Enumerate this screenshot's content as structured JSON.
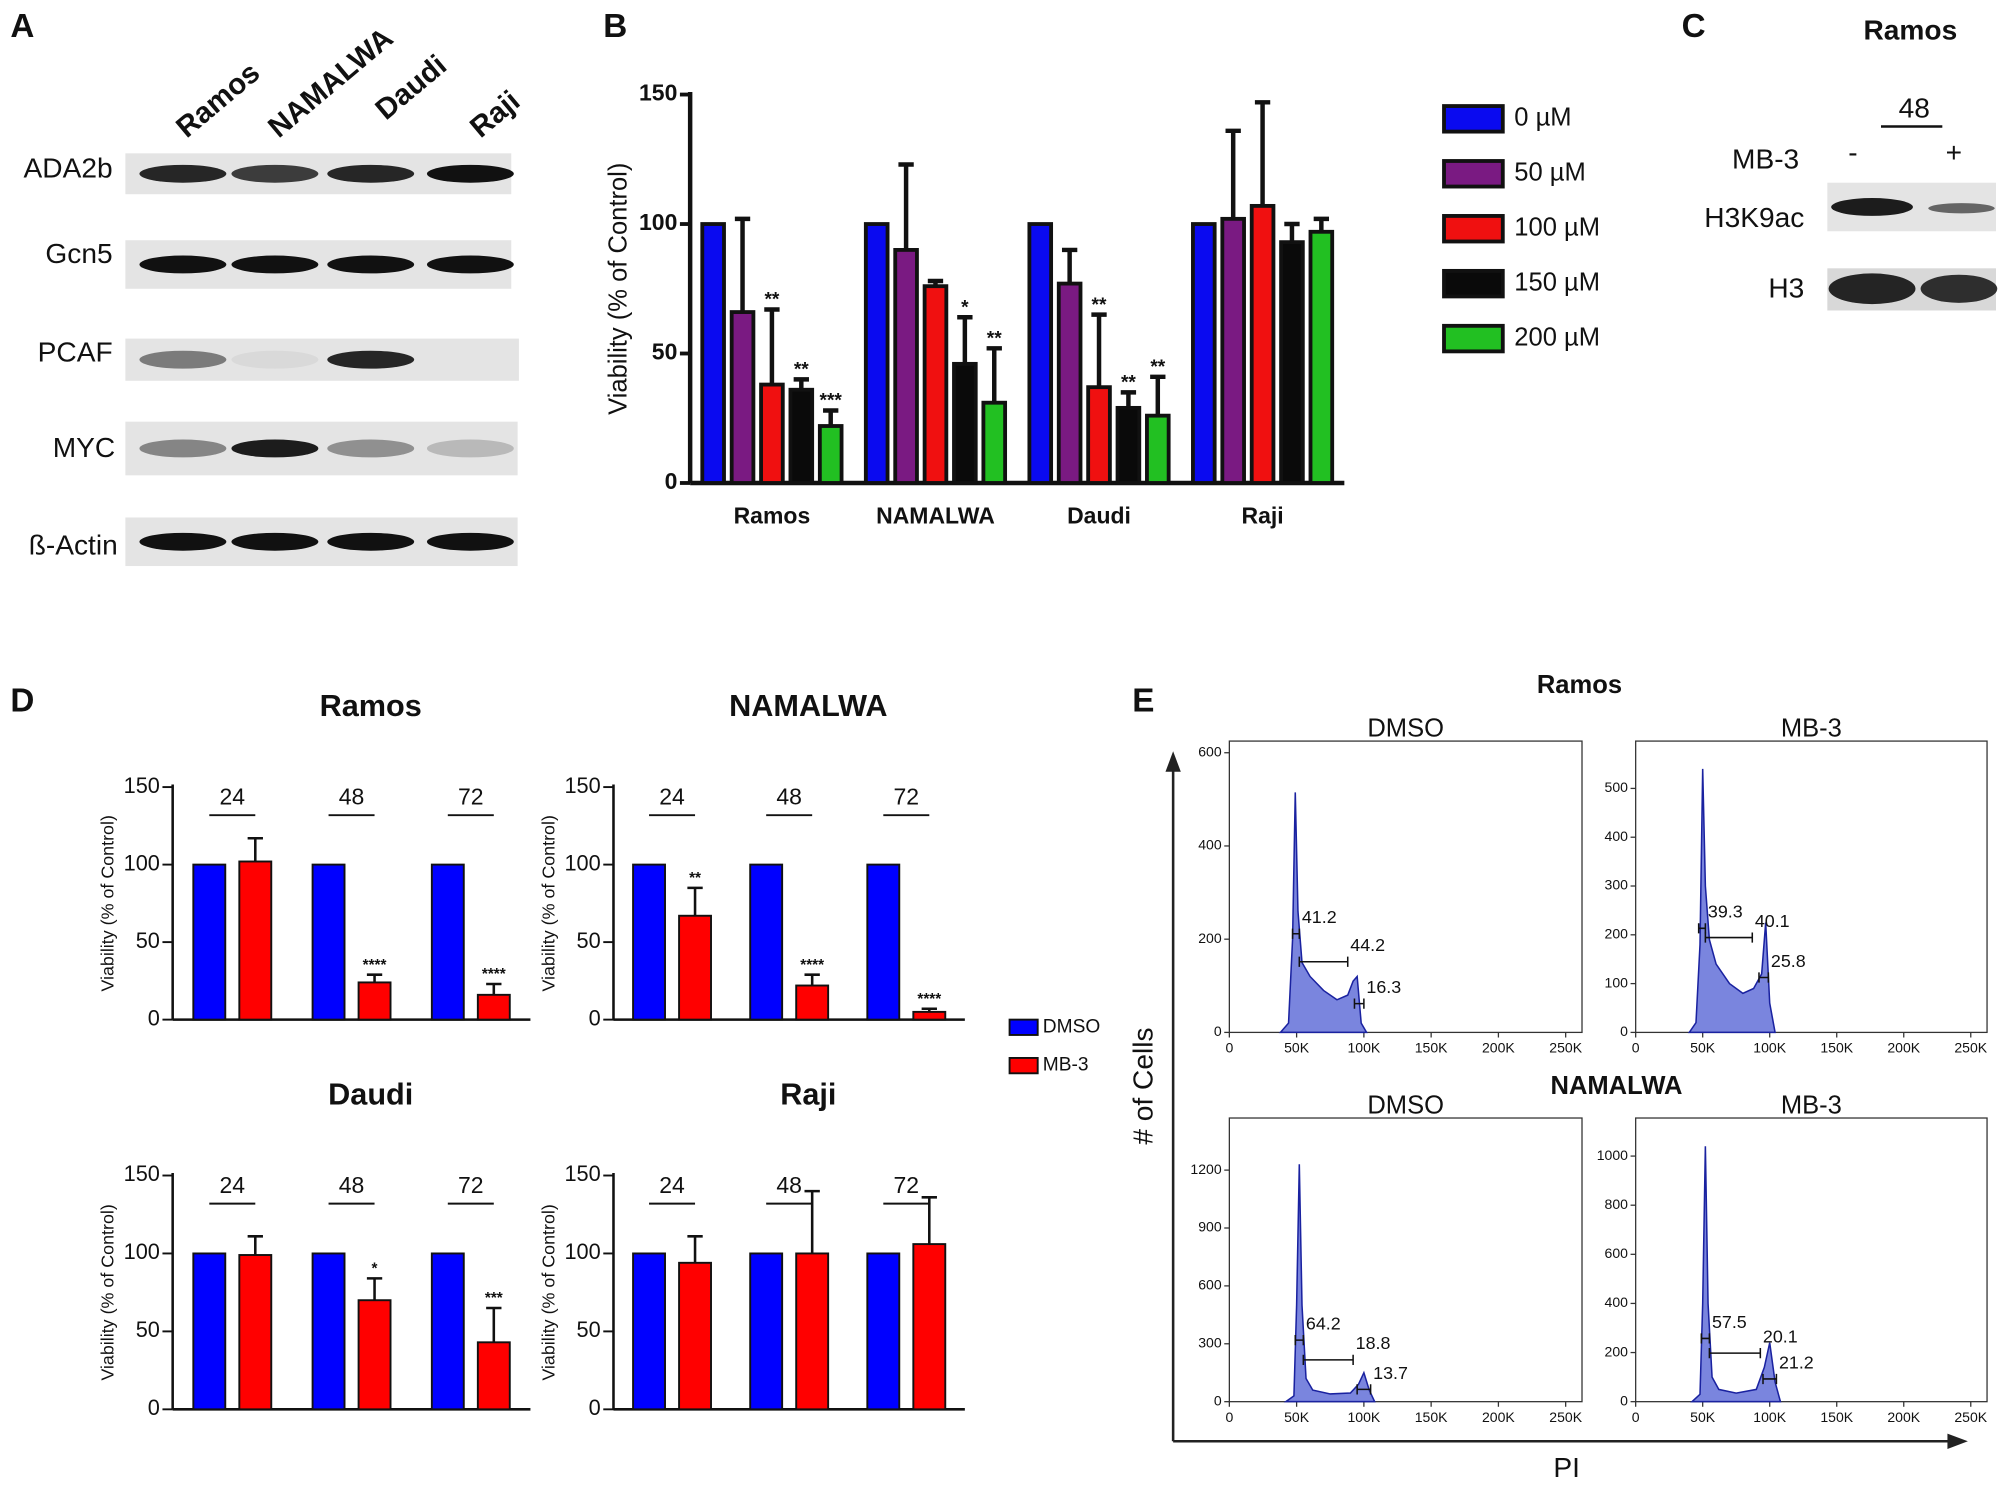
{
  "panel_letters": [
    "A",
    "B",
    "C",
    "D",
    "E"
  ],
  "blots_a": {
    "lanes": [
      "Ramos",
      "NAMALWA",
      "Daudi",
      "Raji"
    ],
    "rows": [
      "ADA2b",
      "Gcn5",
      "PCAF",
      "MYC",
      "ß-Actin"
    ]
  },
  "blot_c": {
    "title": "Ramos",
    "time": "48",
    "treatment": "MB-3",
    "conditions": [
      "-",
      "+"
    ],
    "rows": [
      "H3K9ac",
      "H3"
    ]
  },
  "panel_e": {
    "groups": [
      "Ramos",
      "NAMALWA"
    ],
    "ylabel": "# of Cells",
    "xlabel": "PI"
  },
  "chart_data": [
    {
      "type": "bar",
      "ylabel": "Viability (% of Control)",
      "categories": [
        "Ramos",
        "NAMALWA",
        "Daudi",
        "Raji"
      ],
      "ylim": [
        0,
        150
      ],
      "yticks": [
        0,
        50,
        100,
        150
      ],
      "legend": "right",
      "series": [
        {
          "name": "0 µM",
          "color": "#0a0af0",
          "values": [
            100,
            100,
            100,
            100
          ]
        },
        {
          "name": "50 µM",
          "color": "#7a1a82",
          "values": [
            66,
            90,
            77,
            102
          ],
          "errors": [
            36,
            33,
            13,
            34
          ]
        },
        {
          "name": "100 µM",
          "color": "#f01010",
          "values": [
            38,
            76,
            37,
            107
          ],
          "errors": [
            29,
            2,
            28,
            40
          ],
          "significance": [
            "**",
            null,
            "**",
            null
          ]
        },
        {
          "name": "150 µM",
          "color": "#0a0a0a",
          "values": [
            36,
            46,
            29,
            93
          ],
          "errors": [
            4,
            18,
            6,
            7
          ],
          "significance": [
            "**",
            "*",
            "**",
            null
          ]
        },
        {
          "name": "200 µM",
          "color": "#22c022",
          "values": [
            22,
            31,
            26,
            97
          ],
          "errors": [
            6,
            21,
            15,
            5
          ],
          "significance": [
            "***",
            "**",
            "**",
            null
          ]
        }
      ]
    },
    {
      "type": "bar",
      "title": "Ramos",
      "ylabel": "Viability (% of Control)",
      "categories": [
        "24",
        "48",
        "72"
      ],
      "ylim": [
        0,
        150
      ],
      "yticks": [
        0,
        50,
        100,
        150
      ],
      "series": [
        {
          "name": "DMSO",
          "color": "#0000ff",
          "values": [
            100,
            100,
            100
          ]
        },
        {
          "name": "MB-3",
          "color": "#ff0000",
          "values": [
            102,
            24,
            16
          ],
          "errors": [
            15,
            5,
            7
          ],
          "significance": [
            null,
            "****",
            "****"
          ]
        }
      ]
    },
    {
      "type": "bar",
      "title": "NAMALWA",
      "ylabel": "Viability (% of Control)",
      "categories": [
        "24",
        "48",
        "72"
      ],
      "ylim": [
        0,
        150
      ],
      "yticks": [
        0,
        50,
        100,
        150
      ],
      "legend": "right",
      "series": [
        {
          "name": "DMSO",
          "color": "#0000ff",
          "values": [
            100,
            100,
            100
          ]
        },
        {
          "name": "MB-3",
          "color": "#ff0000",
          "values": [
            67,
            22,
            5
          ],
          "errors": [
            18,
            7,
            2
          ],
          "significance": [
            "**",
            "****",
            "****"
          ]
        }
      ]
    },
    {
      "type": "bar",
      "title": "Daudi",
      "ylabel": "Viability (% of Control)",
      "categories": [
        "24",
        "48",
        "72"
      ],
      "ylim": [
        0,
        150
      ],
      "yticks": [
        0,
        50,
        100,
        150
      ],
      "series": [
        {
          "name": "DMSO",
          "color": "#0000ff",
          "values": [
            100,
            100,
            100
          ]
        },
        {
          "name": "MB-3",
          "color": "#ff0000",
          "values": [
            99,
            70,
            43
          ],
          "errors": [
            12,
            14,
            22
          ],
          "significance": [
            null,
            "*",
            "***"
          ]
        }
      ]
    },
    {
      "type": "bar",
      "title": "Raji",
      "ylabel": "Viability (% of Control)",
      "categories": [
        "24",
        "48",
        "72"
      ],
      "ylim": [
        0,
        150
      ],
      "yticks": [
        0,
        50,
        100,
        150
      ],
      "series": [
        {
          "name": "DMSO",
          "color": "#0000ff",
          "values": [
            100,
            100,
            100
          ]
        },
        {
          "name": "MB-3",
          "color": "#ff0000",
          "values": [
            94,
            100,
            106
          ],
          "errors": [
            17,
            40,
            30
          ]
        }
      ]
    },
    {
      "type": "area",
      "subtitle": "DMSO",
      "color": "#3344cc",
      "x": [
        38000,
        44000,
        47000,
        49000,
        51000,
        54000,
        60000,
        70000,
        80000,
        88000,
        92000,
        95000,
        98000,
        102000
      ],
      "values": [
        0,
        20,
        200,
        515,
        260,
        150,
        120,
        90,
        70,
        80,
        110,
        120,
        20,
        0
      ],
      "xlim": [
        0,
        262144
      ],
      "xticks": [
        0,
        {
          "value": 50000,
          "label": "50K"
        },
        {
          "value": 100000,
          "label": "100K"
        },
        {
          "value": 150000,
          "label": "150K"
        },
        {
          "value": 200000,
          "label": "200K"
        },
        {
          "value": 250000,
          "label": "250K"
        }
      ],
      "ylim": [
        0,
        625
      ],
      "yticks": [
        0,
        200,
        400,
        600
      ],
      "gates": [
        {
          "value": 41.2,
          "x": [
            47000,
            52000
          ]
        },
        {
          "value": 44.2,
          "x": [
            52000,
            88000
          ]
        },
        {
          "value": 16.3,
          "x": [
            93000,
            100000
          ]
        }
      ]
    },
    {
      "type": "area",
      "subtitle": "MB-3",
      "color": "#3344cc",
      "x": [
        40000,
        45000,
        48000,
        50000,
        52000,
        55000,
        60000,
        70000,
        80000,
        88000,
        94000,
        97000,
        100000,
        104000
      ],
      "values": [
        0,
        20,
        180,
        540,
        300,
        190,
        140,
        100,
        80,
        90,
        120,
        225,
        60,
        0
      ],
      "xlim": [
        0,
        262144
      ],
      "xticks": [
        0,
        {
          "value": 50000,
          "label": "50K"
        },
        {
          "value": 100000,
          "label": "100K"
        },
        {
          "value": 150000,
          "label": "150K"
        },
        {
          "value": 200000,
          "label": "200K"
        },
        {
          "value": 250000,
          "label": "250K"
        }
      ],
      "ylim": [
        0,
        597
      ],
      "yticks": [
        0,
        100,
        200,
        300,
        400,
        500
      ],
      "gates": [
        {
          "value": 39.3,
          "x": [
            47000,
            52000
          ]
        },
        {
          "value": 40.1,
          "x": [
            52000,
            87000
          ]
        },
        {
          "value": 25.8,
          "x": [
            92000,
            99000
          ]
        }
      ]
    },
    {
      "type": "area",
      "subtitle": "DMSO",
      "color": "#3344cc",
      "x": [
        42000,
        48000,
        50000,
        52000,
        54000,
        57000,
        62000,
        75000,
        90000,
        96000,
        100000,
        104000,
        108000
      ],
      "values": [
        0,
        30,
        500,
        1230,
        500,
        120,
        60,
        40,
        45,
        90,
        150,
        60,
        0
      ],
      "xlim": [
        0,
        262144
      ],
      "xticks": [
        0,
        {
          "value": 50000,
          "label": "50K"
        },
        {
          "value": 100000,
          "label": "100K"
        },
        {
          "value": 150000,
          "label": "150K"
        },
        {
          "value": 200000,
          "label": "200K"
        },
        {
          "value": 250000,
          "label": "250K"
        }
      ],
      "ylim": [
        0,
        1470
      ],
      "yticks": [
        0,
        300,
        600,
        900,
        1200
      ],
      "gates": [
        {
          "value": 64.2,
          "x": [
            49000,
            55000
          ]
        },
        {
          "value": 18.8,
          "x": [
            55000,
            92000
          ]
        },
        {
          "value": 13.7,
          "x": [
            95000,
            105000
          ]
        }
      ]
    },
    {
      "type": "area",
      "subtitle": "MB-3",
      "color": "#3344cc",
      "x": [
        42000,
        48000,
        50000,
        52000,
        54000,
        57000,
        62000,
        75000,
        90000,
        96000,
        100000,
        104000,
        108000
      ],
      "values": [
        0,
        30,
        400,
        1040,
        400,
        100,
        50,
        35,
        50,
        140,
        240,
        80,
        0
      ],
      "xlim": [
        0,
        262144
      ],
      "xticks": [
        0,
        {
          "value": 50000,
          "label": "50K"
        },
        {
          "value": 100000,
          "label": "100K"
        },
        {
          "value": 150000,
          "label": "150K"
        },
        {
          "value": 200000,
          "label": "200K"
        },
        {
          "value": 250000,
          "label": "250K"
        }
      ],
      "ylim": [
        0,
        1155
      ],
      "yticks": [
        0,
        200,
        400,
        600,
        800,
        1000
      ],
      "gates": [
        {
          "value": 57.5,
          "x": [
            49000,
            55000
          ]
        },
        {
          "value": 20.1,
          "x": [
            55000,
            93000
          ]
        },
        {
          "value": 21.2,
          "x": [
            95000,
            105000
          ]
        }
      ]
    }
  ]
}
